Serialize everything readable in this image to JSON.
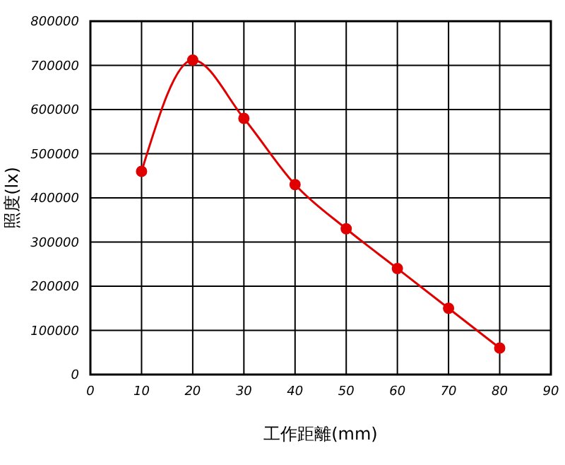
{
  "chart_data": {
    "type": "line",
    "xlabel": "工作距離(mm)",
    "ylabel": "照度(lx)",
    "x": [
      10,
      20,
      30,
      40,
      50,
      60,
      70,
      80
    ],
    "series": [
      {
        "color": "#e00000",
        "values": [
          460000,
          712000,
          580000,
          430000,
          330000,
          240000,
          150000,
          60000
        ]
      }
    ],
    "xlim": [
      0,
      90
    ],
    "xticks": [
      0,
      10,
      20,
      30,
      40,
      50,
      60,
      70,
      80,
      90
    ],
    "ylim": [
      0,
      800000
    ],
    "yticks": [
      0,
      100000,
      200000,
      300000,
      400000,
      500000,
      600000,
      700000,
      800000
    ],
    "grid": true,
    "marker": "circle",
    "line_style": "solid"
  }
}
